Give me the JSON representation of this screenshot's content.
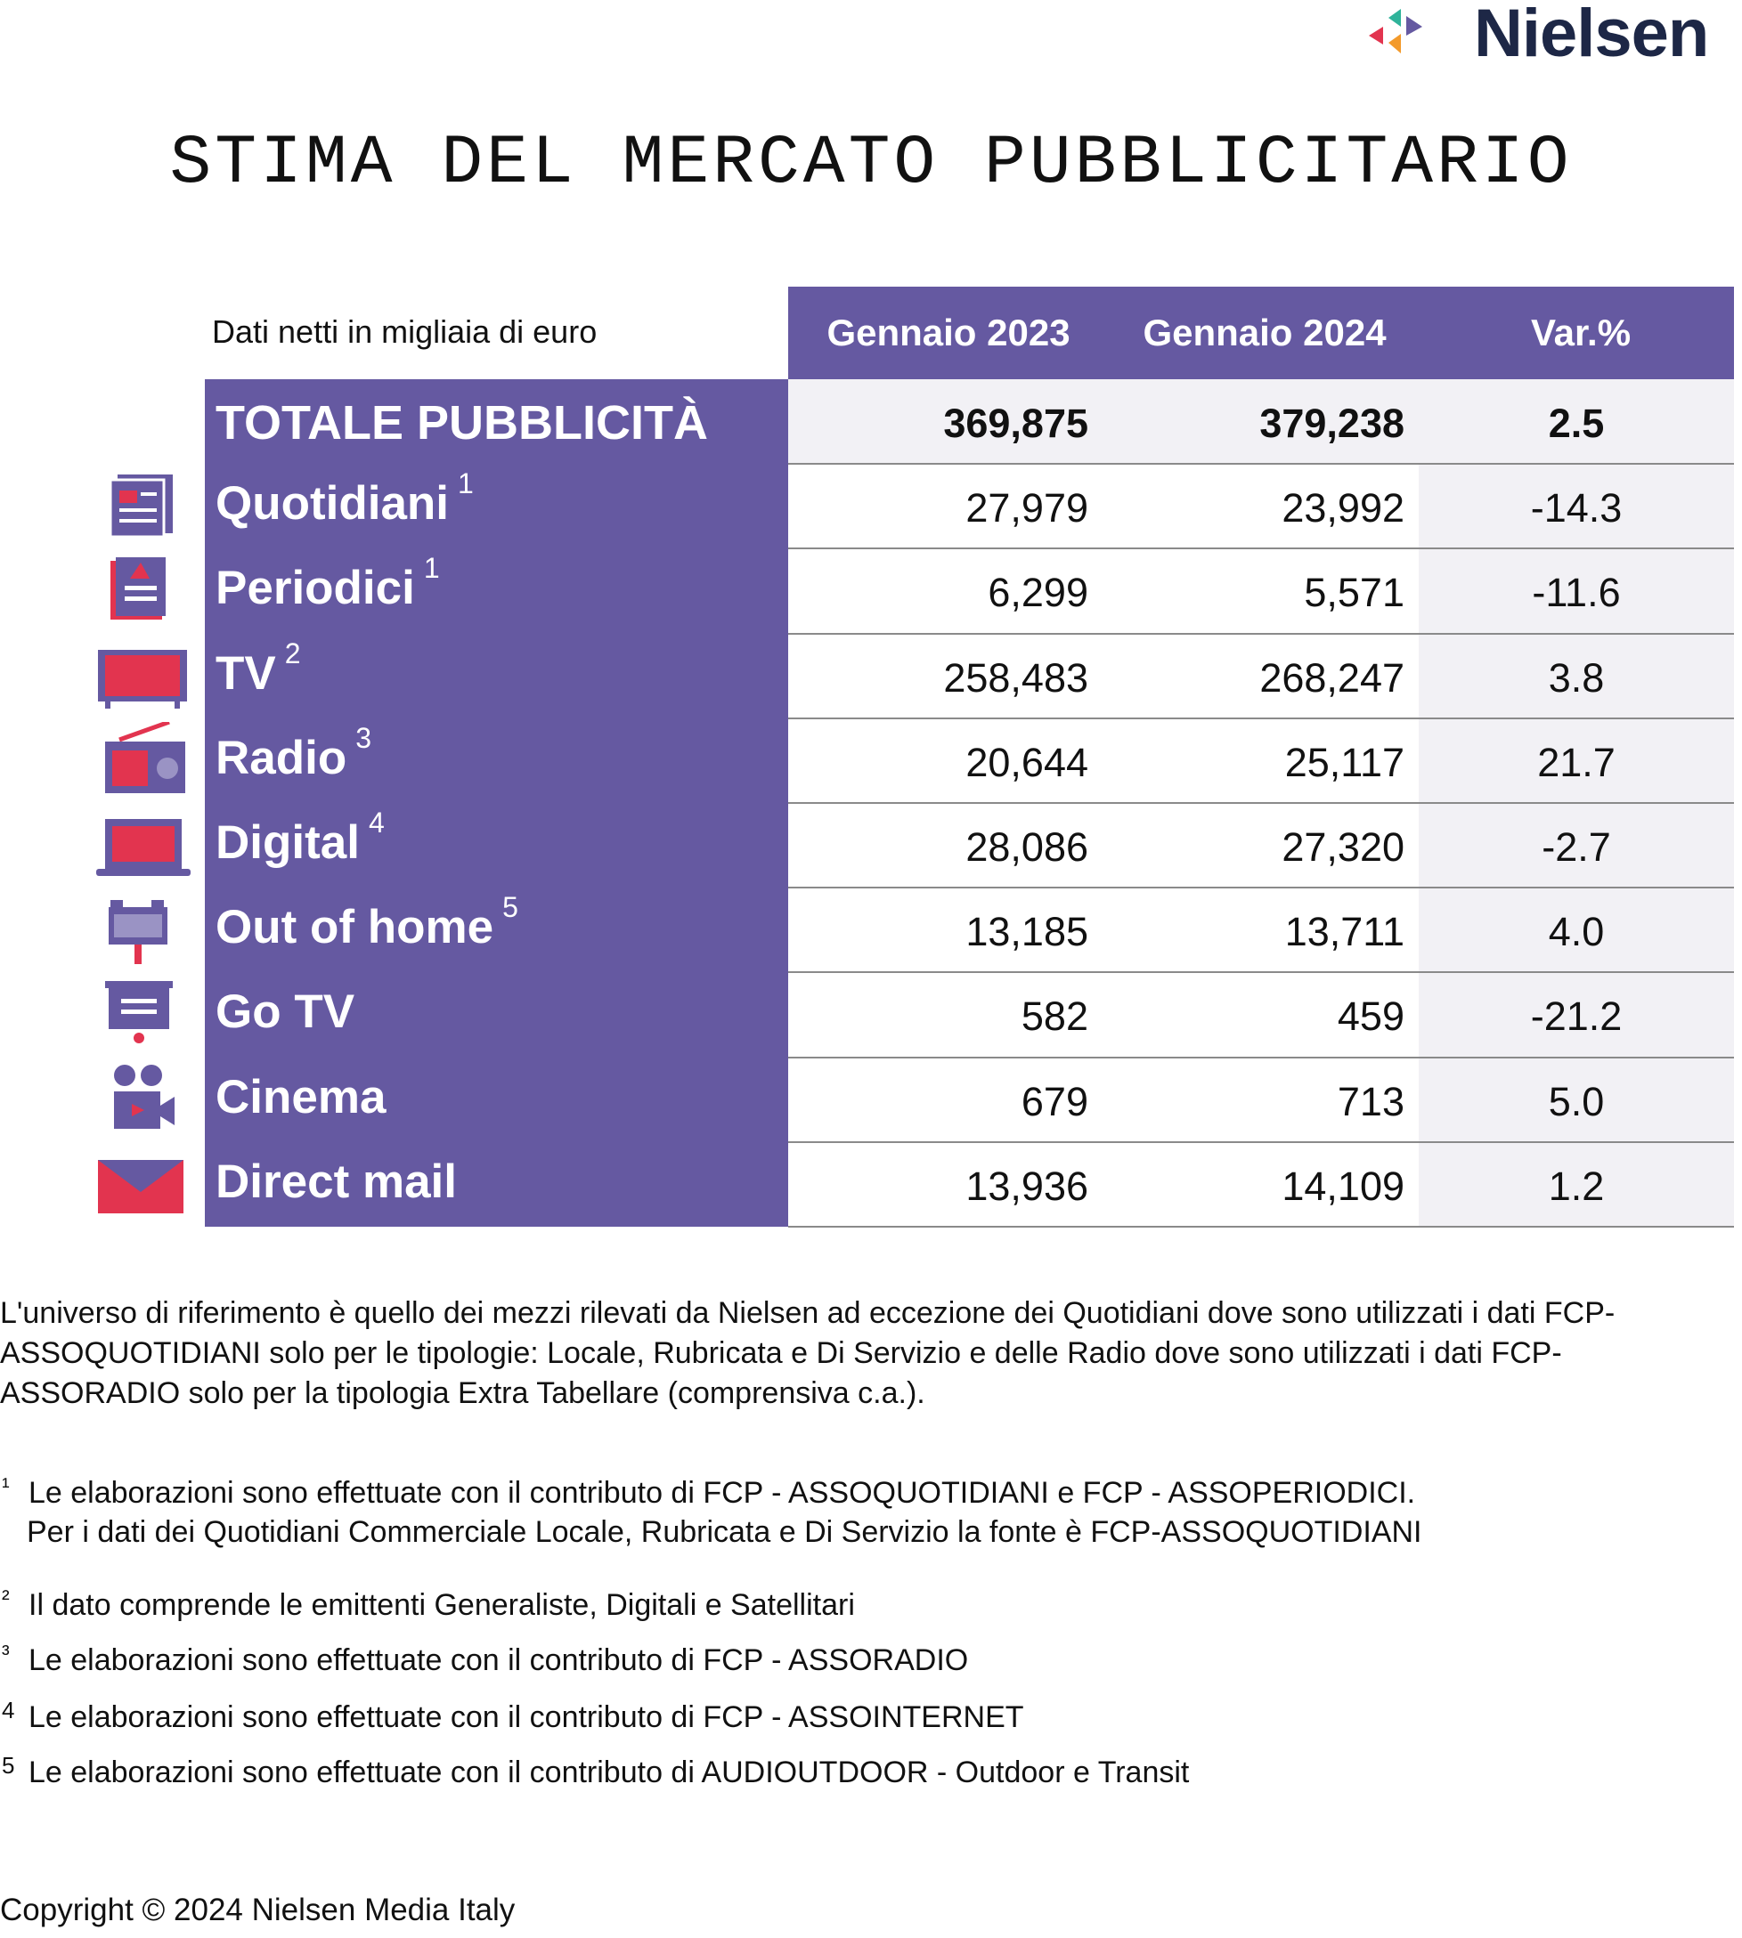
{
  "logo": "Nielsen",
  "title": "STIMA DEL MERCATO PUBBLICITARIO",
  "table": {
    "note": "Dati netti in migliaia di euro",
    "columns": [
      "Gennaio 2023",
      "Gennaio 2024",
      "Var.%"
    ],
    "rows": [
      {
        "label": "TOTALE PUBBLICITÀ",
        "values": [
          "369,875",
          "379,238",
          "2.5"
        ]
      },
      {
        "label": "Quotidiani",
        "sup": "1",
        "values": [
          "27,979",
          "23,992",
          "-14.3"
        ]
      },
      {
        "label": "Periodici",
        "sup": "1",
        "values": [
          "6,299",
          "5,571",
          "-11.6"
        ]
      },
      {
        "label": "TV",
        "sup": "2",
        "values": [
          "258,483",
          "268,247",
          "3.8"
        ]
      },
      {
        "label": "Radio",
        "sup": "3",
        "values": [
          "20,644",
          "25,117",
          "21.7"
        ]
      },
      {
        "label": "Digital",
        "sup": "4",
        "values": [
          "28,086",
          "27,320",
          "-2.7"
        ]
      },
      {
        "label": "Out of home",
        "sup": "5",
        "values": [
          "13,185",
          "13,711",
          "4.0"
        ]
      },
      {
        "label": "Go TV",
        "values": [
          "582",
          "459",
          "-21.2"
        ]
      },
      {
        "label": "Cinema",
        "values": [
          "679",
          "713",
          "5.0"
        ]
      },
      {
        "label": "Direct mail",
        "values": [
          "13,936",
          "14,109",
          "1.2"
        ]
      }
    ]
  },
  "intro": [
    "L'universo di riferimento è quello dei mezzi rilevati da Nielsen ad eccezione dei Quotidiani dove sono utilizzati i dati FCP-",
    "ASSOQUOTIDIANI solo per le tipologie: Locale, Rubricata e Di Servizio e delle Radio dove sono utilizzati i dati FCP-",
    "ASSORADIO solo per la tipologia Extra Tabellare (comprensiva c.a.)."
  ],
  "footnotes": [
    {
      "marker": "¹",
      "lines": [
        "Le elaborazioni sono effettuate con il contributo di FCP - ASSOQUOTIDIANI e FCP - ASSOPERIODICI.",
        "Per i dati dei Quotidiani Commerciale Locale, Rubricata e Di Servizio la fonte è  FCP-ASSOQUOTIDIANI"
      ]
    },
    {
      "marker": "²",
      "lines": [
        "Il dato comprende le emittenti Generaliste, Digitali e Satellitari"
      ]
    },
    {
      "marker": "³",
      "lines": [
        "Le elaborazioni sono effettuate con il contributo di FCP - ASSORADIO"
      ]
    },
    {
      "marker": "4",
      "lines": [
        "Le elaborazioni sono effettuate con il contributo di FCP - ASSOINTERNET"
      ]
    },
    {
      "marker": "5",
      "lines": [
        "Le elaborazioni sono effettuate con il contributo di AUDIOUTDOOR - Outdoor e Transit"
      ]
    }
  ],
  "copyright": "Copyright © 2024 Nielsen Media Italy"
}
